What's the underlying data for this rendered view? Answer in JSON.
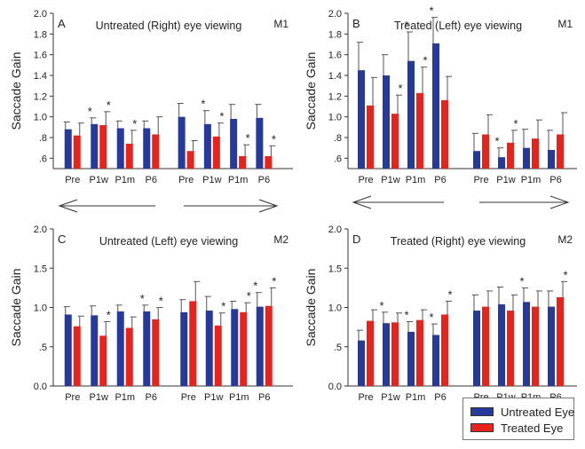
{
  "colors": {
    "untreated": "#253a9b",
    "treated": "#e8231c",
    "axis": "#333333",
    "arrow": "#333333"
  },
  "legend": {
    "untreated_label": "Untreated Eye",
    "treated_label": "Treated Eye"
  },
  "chart_data": [
    {
      "type": "bar",
      "panel": "A",
      "title": "Untreated (Right) eye viewing",
      "monkey": "M1",
      "ylabel": "Saccade Gain",
      "ylim": [
        0.5,
        2.0
      ],
      "yticks": [
        "2.0",
        "1.8",
        "1.6",
        "1.4",
        "1.2",
        "1.0",
        ".8",
        ".6"
      ],
      "ytick_values": [
        2.0,
        1.8,
        1.6,
        1.4,
        1.2,
        1.0,
        0.8,
        0.6
      ],
      "arrows": [
        "left",
        "right"
      ],
      "groups": [
        {
          "direction": "left",
          "categories": [
            "Pre",
            "P1w",
            "P1m",
            "P6"
          ],
          "series": [
            {
              "name": "Untreated Eye",
              "values": [
                0.88,
                0.93,
                0.89,
                0.89
              ],
              "errors": [
                0.07,
                0.06,
                0.07,
                0.07
              ],
              "significant": [
                false,
                true,
                false,
                false
              ]
            },
            {
              "name": "Treated Eye",
              "values": [
                0.82,
                0.92,
                0.74,
                0.83
              ],
              "errors": [
                0.12,
                0.13,
                0.13,
                0.17
              ],
              "significant": [
                false,
                true,
                true,
                false
              ]
            }
          ]
        },
        {
          "direction": "right",
          "categories": [
            "Pre",
            "P1w",
            "P1m",
            "P6"
          ],
          "series": [
            {
              "name": "Untreated Eye",
              "values": [
                1.0,
                0.93,
                0.98,
                0.99
              ],
              "errors": [
                0.13,
                0.13,
                0.14,
                0.13
              ],
              "significant": [
                false,
                true,
                false,
                false
              ]
            },
            {
              "name": "Treated Eye",
              "values": [
                0.67,
                0.81,
                0.62,
                0.62
              ],
              "errors": [
                0.1,
                0.13,
                0.11,
                0.1
              ],
              "significant": [
                false,
                true,
                true,
                true
              ]
            }
          ]
        }
      ]
    },
    {
      "type": "bar",
      "panel": "B",
      "title": "Treated (Left) eye viewing",
      "monkey": "M1",
      "ylabel": "Saccade Gain",
      "ylim": [
        0.5,
        2.0
      ],
      "yticks": [
        "2.0",
        "1.8",
        "1.6",
        "1.4",
        "1.2",
        "1.0",
        ".8",
        ".6"
      ],
      "ytick_values": [
        2.0,
        1.8,
        1.6,
        1.4,
        1.2,
        1.0,
        0.8,
        0.6
      ],
      "arrows": [
        "left",
        "right"
      ],
      "groups": [
        {
          "direction": "left",
          "categories": [
            "Pre",
            "P1w",
            "P1m",
            "P6"
          ],
          "series": [
            {
              "name": "Untreated Eye",
              "values": [
                1.45,
                1.4,
                1.54,
                1.71
              ],
              "errors": [
                0.27,
                0.2,
                0.28,
                0.25
              ],
              "significant": [
                false,
                false,
                true,
                true
              ]
            },
            {
              "name": "Treated Eye",
              "values": [
                1.11,
                1.03,
                1.23,
                1.16
              ],
              "errors": [
                0.27,
                0.18,
                0.25,
                0.23
              ],
              "significant": [
                false,
                true,
                true,
                false
              ]
            }
          ]
        },
        {
          "direction": "right",
          "categories": [
            "Pre",
            "P1w",
            "P1m",
            "P6"
          ],
          "series": [
            {
              "name": "Untreated Eye",
              "values": [
                0.67,
                0.61,
                0.7,
                0.68
              ],
              "errors": [
                0.17,
                0.09,
                0.18,
                0.19
              ],
              "significant": [
                false,
                true,
                false,
                false
              ]
            },
            {
              "name": "Treated Eye",
              "values": [
                0.83,
                0.75,
                0.79,
                0.83
              ],
              "errors": [
                0.19,
                0.12,
                0.18,
                0.21
              ],
              "significant": [
                false,
                true,
                false,
                false
              ]
            }
          ]
        }
      ]
    },
    {
      "type": "bar",
      "panel": "C",
      "title": "Untreated (Left) eye viewing",
      "monkey": "M2",
      "ylabel": "Saccade Gain",
      "ylim": [
        0.0,
        2.0
      ],
      "yticks": [
        "2.0",
        "1.5",
        "1.0",
        ".5",
        "0.0"
      ],
      "ytick_values": [
        2.0,
        1.5,
        1.0,
        0.5,
        0.0
      ],
      "arrows": [],
      "groups": [
        {
          "direction": "left",
          "categories": [
            "Pre",
            "P1w",
            "P1m",
            "P6"
          ],
          "series": [
            {
              "name": "Untreated Eye",
              "values": [
                0.91,
                0.9,
                0.95,
                0.95
              ],
              "errors": [
                0.1,
                0.12,
                0.08,
                0.08
              ],
              "significant": [
                false,
                false,
                false,
                true
              ]
            },
            {
              "name": "Treated Eye",
              "values": [
                0.76,
                0.64,
                0.74,
                0.85
              ],
              "errors": [
                0.13,
                0.18,
                0.14,
                0.15
              ],
              "significant": [
                false,
                true,
                false,
                true
              ]
            }
          ]
        },
        {
          "direction": "right",
          "categories": [
            "Pre",
            "P1w",
            "P1m",
            "P6"
          ],
          "series": [
            {
              "name": "Untreated Eye",
              "values": [
                0.94,
                0.96,
                0.98,
                1.01
              ],
              "errors": [
                0.16,
                0.18,
                0.1,
                0.18
              ],
              "significant": [
                false,
                false,
                false,
                true
              ]
            },
            {
              "name": "Treated Eye",
              "values": [
                1.08,
                0.77,
                0.94,
                1.02
              ],
              "errors": [
                0.25,
                0.16,
                0.12,
                0.23
              ],
              "significant": [
                false,
                true,
                true,
                true
              ]
            }
          ]
        }
      ]
    },
    {
      "type": "bar",
      "panel": "D",
      "title": "Treated (Right) eye viewing",
      "monkey": "M2",
      "ylabel": "Saccade Gain",
      "ylim": [
        0.0,
        2.0
      ],
      "yticks": [
        "2.0",
        "1.5",
        "1.0",
        ".5",
        "0.0"
      ],
      "ytick_values": [
        2.0,
        1.5,
        1.0,
        0.5,
        0.0
      ],
      "arrows": [],
      "groups": [
        {
          "direction": "left",
          "categories": [
            "Pre",
            "P1w",
            "P1m",
            "P6"
          ],
          "series": [
            {
              "name": "Untreated Eye",
              "values": [
                0.58,
                0.8,
                0.69,
                0.65
              ],
              "errors": [
                0.13,
                0.14,
                0.13,
                0.14
              ],
              "significant": [
                false,
                true,
                true,
                true
              ]
            },
            {
              "name": "Treated Eye",
              "values": [
                0.83,
                0.81,
                0.84,
                0.91
              ],
              "errors": [
                0.14,
                0.12,
                0.13,
                0.17
              ],
              "significant": [
                false,
                false,
                false,
                true
              ]
            }
          ]
        },
        {
          "direction": "right",
          "categories": [
            "Pre",
            "P1w",
            "P1m",
            "P6"
          ],
          "series": [
            {
              "name": "Untreated Eye",
              "values": [
                0.96,
                1.04,
                1.07,
                1.01
              ],
              "errors": [
                0.2,
                0.22,
                0.18,
                0.2
              ],
              "significant": [
                false,
                false,
                true,
                false
              ]
            },
            {
              "name": "Treated Eye",
              "values": [
                1.01,
                0.96,
                1.01,
                1.13
              ],
              "errors": [
                0.2,
                0.2,
                0.2,
                0.2
              ],
              "significant": [
                false,
                false,
                false,
                true
              ]
            }
          ]
        }
      ]
    }
  ]
}
